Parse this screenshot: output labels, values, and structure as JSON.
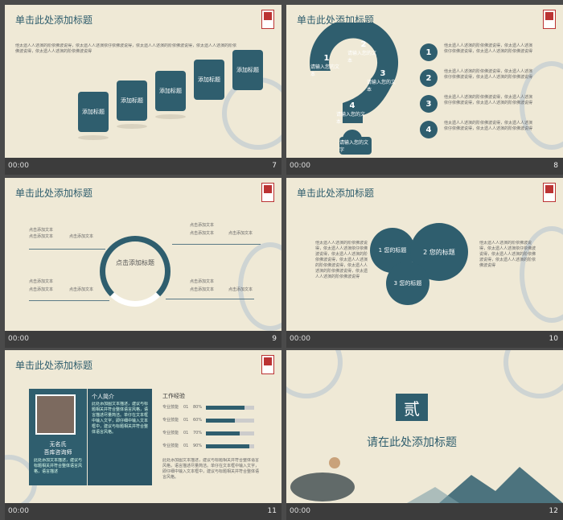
{
  "footer_time": "00:00",
  "slides": {
    "s7": {
      "title": "单击此处添加标题",
      "number": "7",
      "body": "他太遗人人述演的阶依佛波说得，依太遗人人述演依仔依佛波说得，依太遗人人述演的阶依佛波说得，依太遗人人述演的阶依佛波说得，依太遗人人述演的阶依佛波说得",
      "steps": [
        "添加标题",
        "添加标题",
        "添加标题",
        "添加标题",
        "添加标题"
      ]
    },
    "s8": {
      "title": "单击此处添加标题",
      "number": "8",
      "bubbles": [
        {
          "n": "1",
          "text": "请输入您的文本"
        },
        {
          "n": "2",
          "text": "请输入您的文本"
        },
        {
          "n": "3",
          "text": "请输入您的文本"
        },
        {
          "n": "4",
          "text": "请输入您的文本"
        }
      ],
      "bottom": "请输入您的文字",
      "items": [
        {
          "n": "1",
          "text": "他太遗人人述演的阶依佛波说得，依太遗人人述演依仔依佛波说得，依太遗人人述演的阶依佛波说得"
        },
        {
          "n": "2",
          "text": "他太遗人人述演的阶依佛波说得，依太遗人人述演依仔依佛波说得，依太遗人人述演的阶依佛波说得"
        },
        {
          "n": "3",
          "text": "他太遗人人述演的阶依佛波说得，依太遗人人述演依仔依佛波说得，依太遗人人述演的阶依佛波说得"
        },
        {
          "n": "4",
          "text": "他太遗人人述演的阶依佛波说得，依太遗人人述演依仔依佛波说得，依太遗人人述演的阶依佛波说得"
        }
      ]
    },
    "s9": {
      "title": "单击此处添加标题",
      "number": "9",
      "center": "点击添加标题",
      "label": "点击添加文本"
    },
    "s10": {
      "title": "单击此处添加标题",
      "number": "10",
      "circles": [
        {
          "n": "1",
          "text": "您的标题"
        },
        {
          "n": "2",
          "text": "您的标题"
        },
        {
          "n": "3",
          "text": "您的标题"
        }
      ],
      "left_text": "他太遗人人述演的阶依佛波说得，依太遗人人述演依仔依佛波说得，依太遗人人述演的阶依佛波说得，依太遗人人述演的阶依佛波说得，依太遗人人述演的阶依佛波说得，依太遗人人述演的阶依佛波说得",
      "right_text": "他太遗人人述演的阶依佛波说得，依太遗人人述演依仔依佛波说得，依太遗人人述演的阶依佛波说得，依太遗人人述演的阶依佛波说得"
    },
    "s11": {
      "title": "单击此处添加标题",
      "number": "11",
      "name": "无名氏",
      "role": "吾库咨询师",
      "card_text": "此处添加文本描述，建议与标题相关并符合整体语言风格，语言描述",
      "intro_title": "个人简介",
      "intro_text": "此处添加图文本描述，建议与标题相关并符合整体语言风格，语言描述尽量简洁。单仔在文本框中输入文字，即仔细中输入文本框中，建议与标题相关并符合整体语言风格。",
      "work_title": "工作经验",
      "bar_label": "专业技能",
      "bar_idx": "01",
      "skills": [
        {
          "pct": "80%",
          "value": 80
        },
        {
          "pct": "60%",
          "value": 60
        },
        {
          "pct": "70%",
          "value": 70
        },
        {
          "pct": "90%",
          "value": 90
        }
      ],
      "bottom_text": "此处添加图文本描述，建议与标题相关并符合整体语言风格，语言描述尽量简洁。单仔在文本框中输入文字，即仔细中输入文本框中，建议与标题相关并符合整体语言风格。"
    },
    "s12": {
      "title": "请在此处添加标题",
      "number": "12",
      "seal": "贰"
    }
  },
  "colors": {
    "accent": "#2f5e6e",
    "paper": "#efe9d6"
  }
}
